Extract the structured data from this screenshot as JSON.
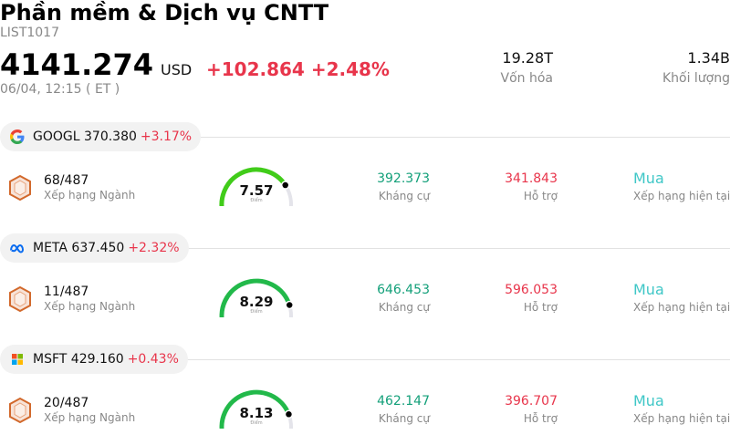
{
  "header": {
    "title": "Phần mềm & Dịch vụ CNTT",
    "code": "LIST1017",
    "price": "4141.274",
    "currency": "USD",
    "change": "+102.864 +2.48%",
    "time": "06/04, 12:15  ( ET )",
    "market_cap_value": "19.28T",
    "market_cap_label": "Vốn hóa",
    "volume_value": "1.34B",
    "volume_label": "Khối lượng"
  },
  "colors": {
    "negative_red": "#e8354b",
    "resistance_green": "#14a07a",
    "rating_teal": "#3fc7c7"
  },
  "stocks": [
    {
      "icon": "google-logo-icon",
      "ticker": "GOOGL",
      "price": "370.380",
      "change": "+3.17%",
      "rank": "68/487",
      "rank_label": "Xếp hạng Ngành",
      "score": "7.57",
      "score_label": "Điểm",
      "score_fraction": 0.757,
      "resistance": "392.373",
      "resistance_label": "Kháng cự",
      "support": "341.843",
      "support_label": "Hỗ trợ",
      "rating": "Mua",
      "rating_label": "Xếp hạng hiện tại"
    },
    {
      "icon": "meta-logo-icon",
      "ticker": "META",
      "price": "637.450",
      "change": "+2.32%",
      "rank": "11/487",
      "rank_label": "Xếp hạng Ngành",
      "score": "8.29",
      "score_label": "Điểm",
      "score_fraction": 0.829,
      "resistance": "646.453",
      "resistance_label": "Kháng cự",
      "support": "596.053",
      "support_label": "Hỗ trợ",
      "rating": "Mua",
      "rating_label": "Xếp hạng hiện tại"
    },
    {
      "icon": "microsoft-logo-icon",
      "ticker": "MSFT",
      "price": "429.160",
      "change": "+0.43%",
      "rank": "20/487",
      "rank_label": "Xếp hạng Ngành",
      "score": "8.13",
      "score_label": "Điểm",
      "score_fraction": 0.813,
      "resistance": "462.147",
      "resistance_label": "Kháng cự",
      "support": "396.707",
      "support_label": "Hỗ trợ",
      "rating": "Mua",
      "rating_label": "Xếp hạng hiện tại"
    }
  ]
}
